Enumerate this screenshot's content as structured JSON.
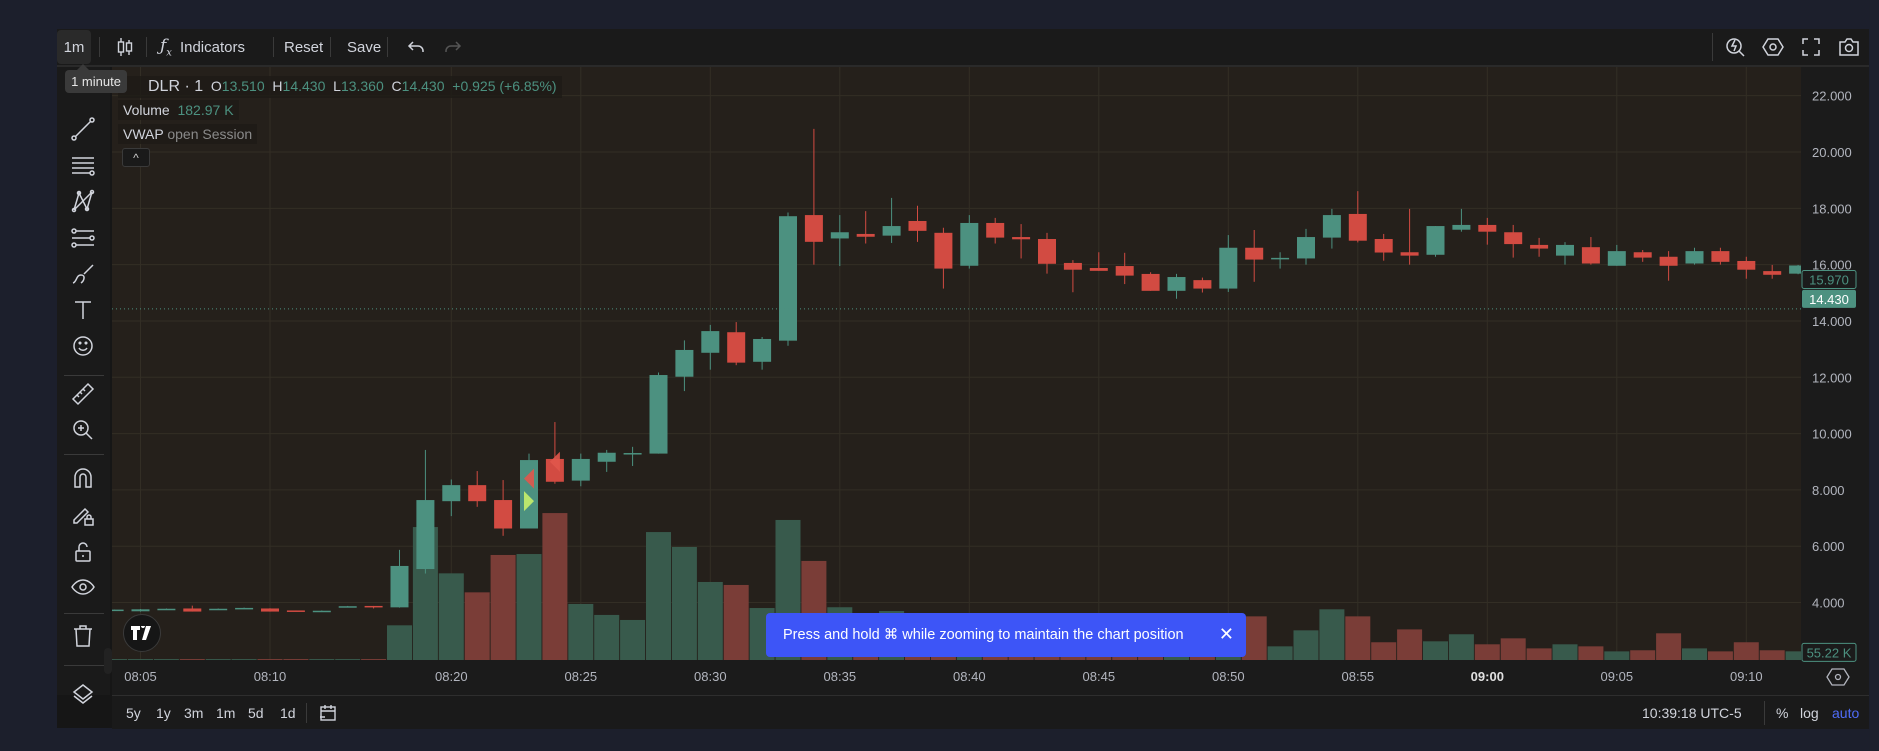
{
  "toolbar": {
    "interval": "1m",
    "interval_tooltip": "1 minute",
    "chart_type_icon": "candles-icon",
    "indicators_label": "Indicators",
    "reset_label": "Reset",
    "save_label": "Save",
    "right_icons": [
      "quick-search-icon",
      "settings-icon",
      "fullscreen-icon",
      "camera-icon"
    ]
  },
  "legend": {
    "symbol": "DLR · 1",
    "o_label": "O",
    "o": "13.510",
    "h_label": "H",
    "h": "14.430",
    "l_label": "L",
    "l": "13.360",
    "c_label": "C",
    "c": "14.430",
    "change": "+0.925 (+6.85%)",
    "volume_label": "Volume",
    "volume_value": "182.97 K",
    "vwap_label": "VWAP",
    "vwap_args": "open Session",
    "collapse": "^"
  },
  "left_toolbar": [
    "crosshair-icon",
    "trend-line-icon",
    "horizontal-lines-icon",
    "pattern-icon",
    "fib-icon",
    "brush-icon",
    "text-icon",
    "emoji-icon",
    "ruler-icon",
    "zoom-in-icon",
    "magnet-icon",
    "lock-drawing-icon",
    "unlock-icon",
    "eye-icon",
    "trash-icon",
    "layers-icon"
  ],
  "toast": {
    "text": "Press and hold ⌘ while zooming to maintain the chart position",
    "close": "✕"
  },
  "bottom": {
    "ranges": [
      "5y",
      "1y",
      "3m",
      "1m",
      "5d",
      "1d"
    ],
    "time": "10:39:18 UTC-5",
    "percent": "%",
    "log": "log",
    "auto": "auto"
  },
  "chart_data": {
    "type": "candlestick",
    "price_ticks": [
      "22.000",
      "20.000",
      "18.000",
      "16.000",
      "14.000",
      "12.000",
      "10.000",
      "8.000",
      "6.000",
      "4.000"
    ],
    "price_range": [
      2.5,
      23.0
    ],
    "time_ticks": [
      {
        "label": "08:05",
        "bar": 1
      },
      {
        "label": "08:10",
        "bar": 6
      },
      {
        "label": "08:20",
        "bar": 13
      },
      {
        "label": "08:25",
        "bar": 18
      },
      {
        "label": "08:30",
        "bar": 23
      },
      {
        "label": "08:35",
        "bar": 28
      },
      {
        "label": "08:40",
        "bar": 33
      },
      {
        "label": "08:45",
        "bar": 38
      },
      {
        "label": "08:50",
        "bar": 43
      },
      {
        "label": "08:55",
        "bar": 48
      },
      {
        "label": "09:00",
        "bar": 53,
        "bold": true
      },
      {
        "label": "09:05",
        "bar": 58
      },
      {
        "label": "09:10",
        "bar": 63
      }
    ],
    "last_price_label": "15.970",
    "crosshair_price_label": "14.430",
    "crosshair_price": 14.43,
    "last_volume_label": "55.22 K",
    "colors": {
      "up": "#4c9180",
      "down": "#d24b42",
      "vol_up": "#385a4c",
      "vol_down": "#7a3d37"
    },
    "columns": [
      "open",
      "high",
      "low",
      "close",
      "volume_k"
    ],
    "candles": [
      [
        3.74,
        3.75,
        3.73,
        3.75,
        6
      ],
      [
        3.69,
        3.77,
        3.68,
        3.76,
        6
      ],
      [
        3.77,
        3.79,
        3.77,
        3.78,
        6
      ],
      [
        3.79,
        3.89,
        3.68,
        3.68,
        6
      ],
      [
        3.77,
        3.79,
        3.77,
        3.78,
        6
      ],
      [
        3.8,
        3.82,
        3.8,
        3.81,
        6
      ],
      [
        3.79,
        3.8,
        3.68,
        3.68,
        6
      ],
      [
        3.72,
        3.72,
        3.7,
        3.71,
        6
      ],
      [
        3.7,
        3.72,
        3.7,
        3.71,
        6
      ],
      [
        3.86,
        3.88,
        3.86,
        3.87,
        6
      ],
      [
        3.88,
        3.88,
        3.79,
        3.85,
        6
      ],
      [
        3.83,
        5.87,
        3.82,
        5.3,
        221
      ],
      [
        5.19,
        9.42,
        5.03,
        7.64,
        847
      ],
      [
        7.6,
        8.37,
        7.07,
        8.17,
        552
      ],
      [
        8.17,
        8.67,
        7.4,
        7.6,
        431
      ],
      [
        7.64,
        8.35,
        6.37,
        6.63,
        669
      ],
      [
        6.63,
        9.29,
        6.63,
        9.06,
        675
      ],
      [
        9.1,
        10.41,
        8.22,
        8.29,
        936
      ],
      [
        8.33,
        9.29,
        8.13,
        9.1,
        357
      ],
      [
        9.0,
        9.42,
        8.64,
        9.32,
        287
      ],
      [
        9.29,
        9.53,
        8.85,
        9.31,
        255
      ],
      [
        9.29,
        12.17,
        9.29,
        12.08,
        815
      ],
      [
        12.02,
        13.31,
        11.51,
        12.97,
        720
      ],
      [
        12.87,
        13.86,
        12.27,
        13.64,
        497
      ],
      [
        13.6,
        13.96,
        12.43,
        12.52,
        478
      ],
      [
        12.55,
        13.43,
        12.27,
        13.36,
        331
      ],
      [
        13.3,
        17.85,
        13.12,
        17.72,
        892
      ],
      [
        17.76,
        20.82,
        16.0,
        16.81,
        631
      ],
      [
        16.93,
        17.76,
        15.95,
        17.15,
        336
      ],
      [
        17.09,
        17.9,
        16.75,
        16.99,
        180
      ],
      [
        17.03,
        18.37,
        16.77,
        17.37,
        312
      ],
      [
        17.55,
        18.09,
        16.81,
        17.2,
        150
      ],
      [
        17.13,
        17.31,
        15.15,
        15.86,
        230
      ],
      [
        15.96,
        17.76,
        15.86,
        17.48,
        200
      ],
      [
        17.48,
        17.66,
        16.75,
        16.96,
        120
      ],
      [
        16.98,
        17.44,
        16.22,
        16.9,
        90
      ],
      [
        16.91,
        17.13,
        15.68,
        16.03,
        160
      ],
      [
        16.06,
        16.16,
        15.02,
        15.82,
        140
      ],
      [
        15.88,
        16.44,
        15.78,
        15.78,
        80
      ],
      [
        15.95,
        16.42,
        15.31,
        15.61,
        110
      ],
      [
        15.67,
        15.73,
        15.07,
        15.07,
        150
      ],
      [
        15.07,
        15.67,
        14.79,
        15.56,
        120
      ],
      [
        15.45,
        15.54,
        15.01,
        15.15,
        90
      ],
      [
        15.15,
        17.05,
        15.03,
        16.6,
        265
      ],
      [
        16.6,
        17.23,
        15.39,
        16.18,
        278
      ],
      [
        16.23,
        16.44,
        15.86,
        16.24,
        87
      ],
      [
        16.22,
        17.27,
        16.0,
        16.98,
        189
      ],
      [
        16.96,
        17.98,
        16.57,
        17.76,
        323
      ],
      [
        17.8,
        18.61,
        16.79,
        16.85,
        278
      ],
      [
        16.91,
        17.09,
        16.14,
        16.43,
        113
      ],
      [
        16.44,
        17.98,
        16.0,
        16.32,
        195
      ],
      [
        16.35,
        17.37,
        16.28,
        17.37,
        119
      ],
      [
        17.24,
        17.98,
        17.17,
        17.41,
        164
      ],
      [
        17.41,
        17.66,
        16.71,
        17.17,
        100
      ],
      [
        17.15,
        17.41,
        16.25,
        16.73,
        138
      ],
      [
        16.7,
        16.95,
        16.28,
        16.57,
        74
      ],
      [
        16.32,
        16.8,
        16.0,
        16.7,
        100
      ],
      [
        16.62,
        16.98,
        16.0,
        16.04,
        87
      ],
      [
        15.96,
        16.7,
        15.96,
        16.48,
        55
      ],
      [
        16.44,
        16.52,
        16.1,
        16.25,
        62
      ],
      [
        16.28,
        16.48,
        15.43,
        15.96,
        170
      ],
      [
        16.04,
        16.6,
        16.0,
        16.48,
        74
      ],
      [
        16.48,
        16.6,
        16.0,
        16.1,
        55
      ],
      [
        16.13,
        16.28,
        15.5,
        15.82,
        113
      ],
      [
        15.77,
        15.99,
        15.5,
        15.64,
        62
      ],
      [
        15.68,
        15.99,
        15.66,
        15.97,
        55.22
      ]
    ],
    "markers": [
      {
        "bar": 16,
        "price": 8.4,
        "shape": "triangle-left",
        "color": "#e0574b"
      },
      {
        "bar": 16,
        "price": 7.6,
        "shape": "triangle-right",
        "color": "#c6f06a"
      },
      {
        "bar": 17,
        "price": 9.0,
        "shape": "triangle-left",
        "color": "#e0574b"
      }
    ]
  }
}
